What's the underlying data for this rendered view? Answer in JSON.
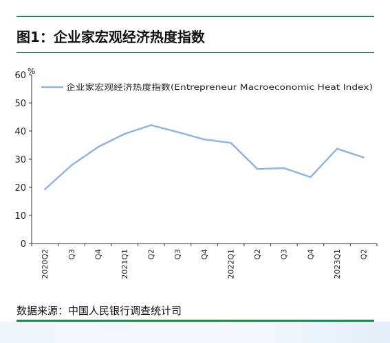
{
  "figure": {
    "title": "图1：企业家宏观经济热度指数",
    "source": "数据来源：中国人民银行调查统计司"
  },
  "colors": {
    "rule": "#1c8a46",
    "line": "#8fb4e3",
    "axis": "#333333"
  },
  "chart_data": {
    "type": "line",
    "title": "",
    "xlabel": "",
    "ylabel": "%",
    "ylim": [
      0,
      60
    ],
    "yticks": [
      0,
      10,
      20,
      30,
      40,
      50,
      60
    ],
    "categories": [
      "2020Q2",
      "Q3",
      "Q4",
      "2021Q1",
      "Q2",
      "Q3",
      "Q4",
      "2022Q1",
      "Q2",
      "Q3",
      "Q4",
      "2023Q1",
      "Q2"
    ],
    "series": [
      {
        "name": "企业家宏观经济热度指数(Entrepreneur Macroeconomic Heat Index)",
        "values": [
          19.3,
          27.8,
          34.3,
          39.0,
          42.1,
          39.6,
          37.0,
          35.8,
          26.5,
          26.8,
          23.6,
          33.7,
          30.6
        ]
      }
    ],
    "legend_position": "top-left",
    "grid": false
  }
}
